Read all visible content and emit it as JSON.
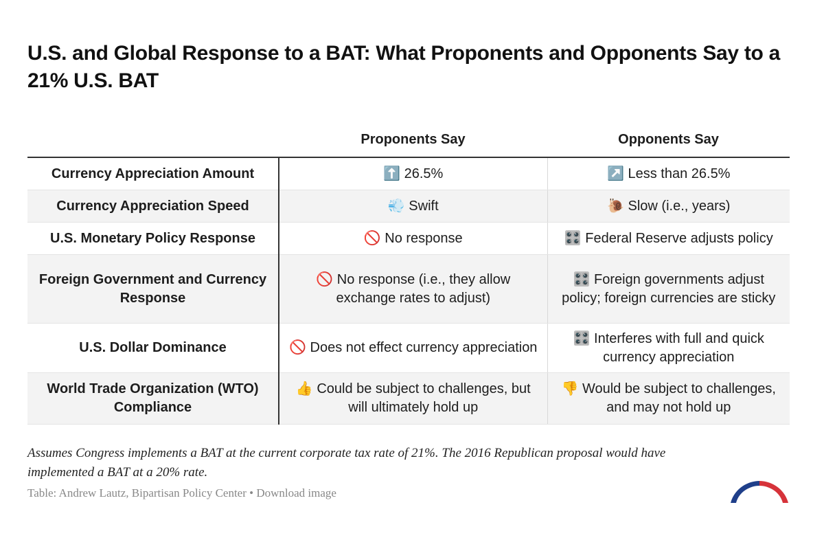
{
  "header": {
    "title": "U.S. and Global Response to a BAT: What Proponents and Opponents Say to a 21% U.S. BAT"
  },
  "table": {
    "columns": [
      "Proponents Say",
      "Opponents Say"
    ],
    "rows": [
      [
        "Currency Appreciation Amount",
        "⬆️ 26.5%",
        "↗️ Less than 26.5%"
      ],
      [
        "Currency Appreciation Speed",
        "💨 Swift",
        "🐌 Slow (i.e., years)"
      ],
      [
        "U.S. Monetary Policy Response",
        "🚫 No response",
        "🎛️ Federal Reserve adjusts policy"
      ],
      [
        "Foreign Government and Currency Response",
        "🚫 No response (i.e., they allow exchange rates to adjust)",
        "🎛️ Foreign governments adjust policy; foreign currencies are sticky"
      ],
      [
        "U.S. Dollar Dominance",
        "🚫 Does not effect currency appreciation",
        "🎛️ Interferes with full and quick currency appreciation"
      ],
      [
        "World Trade Organization (WTO) Compliance",
        "👍 Could be subject to challenges, but will ultimately hold up",
        "👎 Would be subject to challenges, and may not hold up"
      ]
    ]
  },
  "footer": {
    "notes": "Assumes Congress implements a BAT at the current corporate tax rate of 21%. The 2016 Republican proposal would have implemented a BAT at a 20% rate.",
    "source": "Table: Andrew Lautz, Bipartisan Policy Center",
    "separator": "•",
    "download": "Download image"
  }
}
